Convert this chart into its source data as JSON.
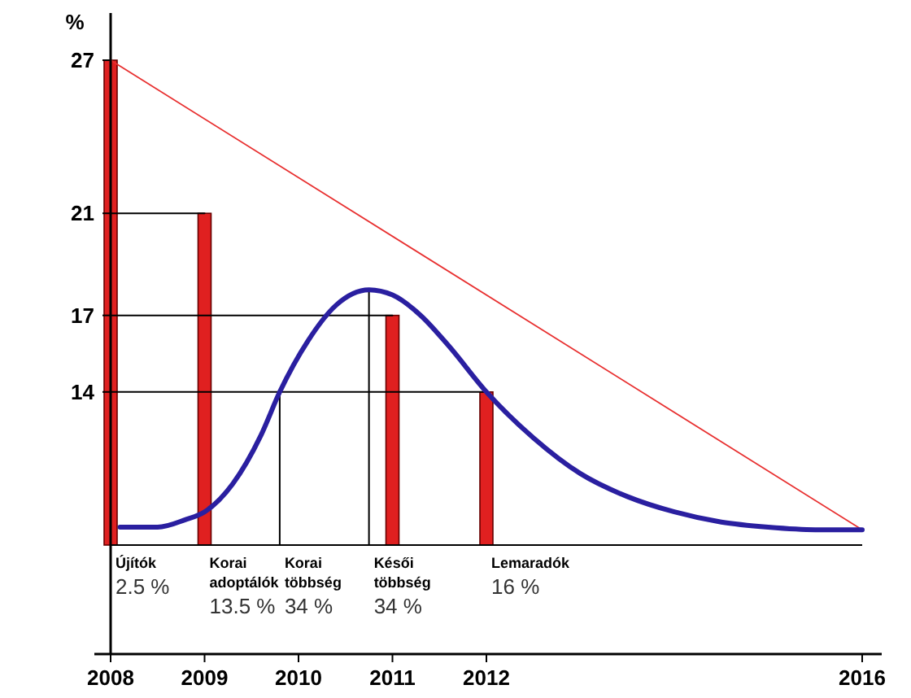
{
  "chart_data": {
    "type": "bar",
    "ylabel": "%",
    "xlim": [
      2008,
      2016
    ],
    "xticks": [
      2008,
      2009,
      2010,
      2011,
      2012,
      2016
    ],
    "ylim": [
      8,
      27
    ],
    "yticks": [
      14,
      17,
      21,
      27
    ],
    "grid": false,
    "series": [
      {
        "color": "#e02020",
        "x": [
          2008,
          2009,
          2011,
          2012
        ],
        "values": [
          27,
          21,
          17,
          14
        ]
      },
      {
        "type": "line",
        "color": "#000000",
        "x": [
          2008,
          2009
        ],
        "values": [
          21,
          21
        ]
      },
      {
        "type": "line",
        "color": "#000000",
        "x": [
          2008,
          2011
        ],
        "values": [
          17,
          17
        ]
      },
      {
        "type": "line",
        "color": "#000000",
        "x": [
          2008,
          2012
        ],
        "values": [
          14,
          14
        ]
      },
      {
        "type": "line",
        "color": "#000000",
        "x": [
          2009.8,
          2009.8
        ],
        "values": [
          8,
          14
        ]
      },
      {
        "type": "line",
        "color": "#000000",
        "x": [
          2010.75,
          2010.75
        ],
        "values": [
          8,
          18
        ]
      },
      {
        "type": "line",
        "color": "#e83030",
        "x": [
          2008,
          2016
        ],
        "values": [
          27,
          8.6
        ]
      },
      {
        "type": "line",
        "color": "#2a1fa0",
        "x": [
          2008.1,
          2008.5,
          2008.8,
          2009,
          2009.3,
          2009.6,
          2009.8,
          2010.1,
          2010.4,
          2010.75,
          2011,
          2011.3,
          2011.6,
          2012,
          2012.5,
          2013,
          2013.5,
          2014,
          2014.5,
          2015,
          2015.5,
          2016
        ],
        "values": [
          8.7,
          8.7,
          9.0,
          9.3,
          10.4,
          12.3,
          14,
          16,
          17.4,
          18,
          17.8,
          17.0,
          15.8,
          14,
          12.2,
          10.8,
          9.9,
          9.3,
          8.9,
          8.7,
          8.6,
          8.6
        ]
      }
    ],
    "annotations": [
      {
        "text": "Újítók\n2.5 %",
        "x": 2008,
        "y": 8
      },
      {
        "text": "Korai\nadoptálók\n13.5 %",
        "x": 2009,
        "y": 8
      },
      {
        "text": "Korai\ntöbbség\n34 %",
        "x": 2009.8,
        "y": 8
      },
      {
        "text": "Késői\ntöbbség\n34 %",
        "x": 2010.75,
        "y": 8
      },
      {
        "text": "Lemaradók\n16 %",
        "x": 2012,
        "y": 8
      }
    ]
  }
}
